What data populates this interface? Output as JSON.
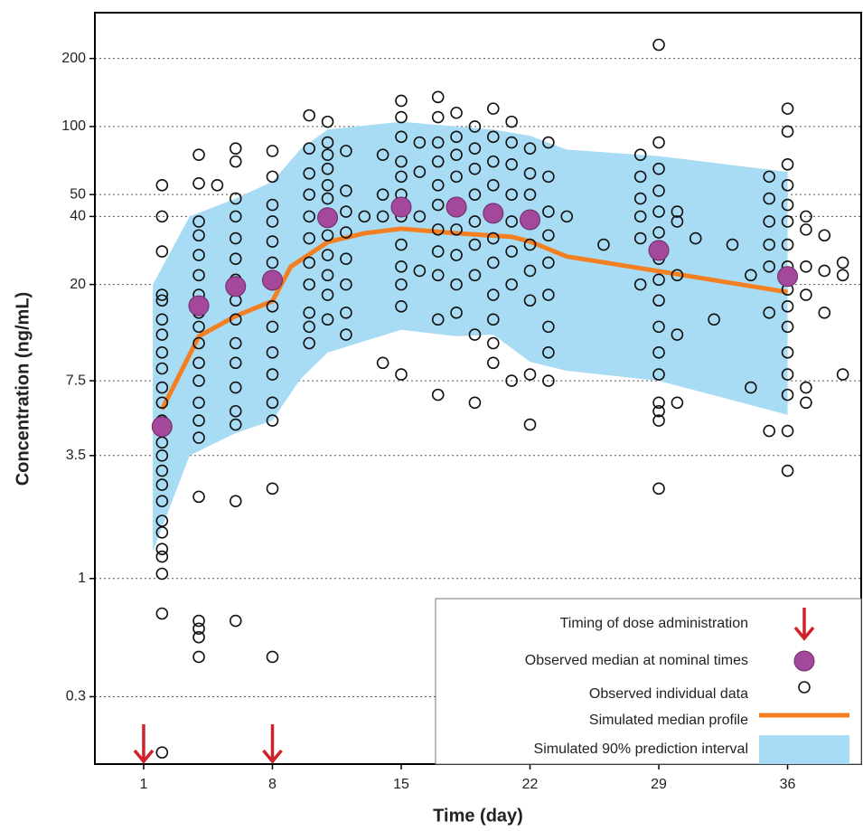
{
  "chart_data": {
    "type": "scatter",
    "x_label": "Time (day)",
    "y_label": "Concentration (ng/mL)",
    "log_y": true,
    "grid": true,
    "legend": "lower right",
    "xlim": [
      -1.65,
      40
    ],
    "xticks": [
      1,
      8,
      15,
      22,
      29,
      36
    ],
    "ylim": [
      0.151,
      319
    ],
    "yticks": [
      0.3,
      1,
      3.5,
      7.5,
      20,
      40,
      50,
      100,
      200
    ],
    "series": [
      {
        "name": "Timing of dose administration",
        "type": "arrow",
        "color": "#d0202a",
        "x": [
          1,
          8
        ]
      },
      {
        "name": "Observed median at nominal times",
        "type": "dots",
        "color": "#a4489b",
        "x": [
          2,
          4,
          6,
          8,
          11,
          15,
          18,
          20,
          22,
          29,
          36
        ],
        "values": [
          4.7,
          16.1,
          19.6,
          20.9,
          39.5,
          44,
          44,
          41.3,
          38.7,
          28.3,
          21.7
        ]
      },
      {
        "name": "Observed individual data",
        "type": "scatter",
        "color": "#111111",
        "groups": [
          {
            "x": 2,
            "values": [
              0.17,
              0.7,
              1.05,
              1.25,
              1.35,
              1.6,
              1.8,
              2.2,
              2.6,
              3,
              3.5,
              4,
              5,
              6,
              7,
              8.5,
              10,
              12,
              14,
              17,
              18,
              28,
              40,
              55
            ]
          },
          {
            "x": 4,
            "values": [
              0.45,
              0.55,
              0.6,
              0.65,
              2.3,
              4.2,
              5,
              6,
              7.5,
              9,
              11,
              13,
              15,
              18,
              22,
              27,
              33,
              38,
              56,
              75
            ]
          },
          {
            "x": 5,
            "values": [
              55
            ]
          },
          {
            "x": 6,
            "values": [
              0.65,
              2.2,
              4.8,
              5.5,
              7,
              9,
              11,
              14,
              17,
              21,
              26,
              32,
              40,
              48,
              70,
              80
            ]
          },
          {
            "x": 8,
            "values": [
              0.45,
              2.5,
              5,
              6,
              8,
              10,
              13,
              16,
              20,
              25,
              31,
              38,
              45,
              60,
              78
            ]
          },
          {
            "x": 10,
            "values": [
              11,
              13,
              15,
              20,
              25,
              32,
              40,
              50,
              62,
              80,
              112
            ]
          },
          {
            "x": 11,
            "values": [
              14,
              18,
              22,
              27,
              33,
              40,
              48,
              55,
              65,
              75,
              85,
              105
            ]
          },
          {
            "x": 12,
            "values": [
              12,
              15,
              20,
              26,
              34,
              42,
              52,
              78
            ]
          },
          {
            "x": 13,
            "values": [
              40
            ]
          },
          {
            "x": 14,
            "values": [
              9,
              40,
              50,
              75
            ]
          },
          {
            "x": 15,
            "values": [
              8,
              16,
              20,
              24,
              30,
              40,
              50,
              60,
              70,
              90,
              110,
              130
            ]
          },
          {
            "x": 16,
            "values": [
              23,
              40,
              63,
              85
            ]
          },
          {
            "x": 17,
            "values": [
              6.5,
              14,
              22,
              28,
              35,
              45,
              55,
              70,
              85,
              110,
              135
            ]
          },
          {
            "x": 18,
            "values": [
              15,
              20,
              27,
              35,
              45,
              60,
              75,
              90,
              115
            ]
          },
          {
            "x": 19,
            "values": [
              6,
              12,
              22,
              30,
              38,
              50,
              65,
              80,
              100
            ]
          },
          {
            "x": 20,
            "values": [
              9,
              11,
              14,
              18,
              25,
              32,
              42,
              55,
              70,
              90,
              120
            ]
          },
          {
            "x": 21,
            "values": [
              7.5,
              20,
              28,
              38,
              50,
              68,
              85,
              105
            ]
          },
          {
            "x": 22,
            "values": [
              4.8,
              8,
              17,
              23,
              30,
              40,
              50,
              62,
              80
            ]
          },
          {
            "x": 23,
            "values": [
              7.5,
              10,
              13,
              18,
              25,
              33,
              42,
              60,
              85
            ]
          },
          {
            "x": 24,
            "values": [
              40
            ]
          },
          {
            "x": 26,
            "values": [
              30
            ]
          },
          {
            "x": 28,
            "values": [
              20,
              32,
              40,
              48,
              60,
              75
            ]
          },
          {
            "x": 29,
            "values": [
              2.5,
              5,
              5.5,
              6,
              8,
              10,
              13,
              17,
              21,
              26,
              34,
              42,
              52,
              65,
              85,
              230
            ]
          },
          {
            "x": 30,
            "values": [
              6,
              12,
              22,
              38,
              42
            ]
          },
          {
            "x": 31,
            "values": [
              32
            ]
          },
          {
            "x": 32,
            "values": [
              14
            ]
          },
          {
            "x": 33,
            "values": [
              30
            ]
          },
          {
            "x": 34,
            "values": [
              7,
              22
            ]
          },
          {
            "x": 35,
            "values": [
              4.5,
              15,
              24,
              30,
              38,
              48,
              60
            ]
          },
          {
            "x": 36,
            "values": [
              3,
              4.5,
              6.5,
              8,
              10,
              13,
              16,
              19,
              24,
              30,
              38,
              45,
              55,
              68,
              95,
              120
            ]
          },
          {
            "x": 37,
            "values": [
              6,
              7,
              18,
              24,
              35,
              40
            ]
          },
          {
            "x": 38,
            "values": [
              15,
              23,
              33
            ]
          },
          {
            "x": 39,
            "values": [
              8,
              22,
              25
            ]
          }
        ]
      },
      {
        "name": "Simulated median profile",
        "type": "line",
        "color": "#f47f20",
        "x": [
          2,
          4,
          6,
          8,
          9,
          11,
          13,
          15,
          18,
          21,
          22,
          24,
          29,
          36
        ],
        "values": [
          5.6,
          11.8,
          14.5,
          16.9,
          24,
          30.8,
          33.7,
          35.3,
          33.7,
          32.5,
          31,
          26.6,
          22.9,
          18.5
        ]
      },
      {
        "name": "Simulated 90% prediction interval",
        "type": "band",
        "color": "#a8dcf4",
        "x": [
          1.5,
          3.5,
          6,
          8,
          9.5,
          11,
          15,
          18,
          20,
          22,
          24,
          29,
          36
        ],
        "upper": [
          20,
          40,
          48,
          57,
          79,
          97,
          105,
          100,
          97,
          91,
          79,
          74,
          63
        ],
        "lower": [
          1.32,
          3.5,
          4.4,
          5,
          7.6,
          10,
          12.6,
          11.8,
          12,
          9.1,
          8.3,
          7.5,
          5.3
        ]
      }
    ]
  }
}
